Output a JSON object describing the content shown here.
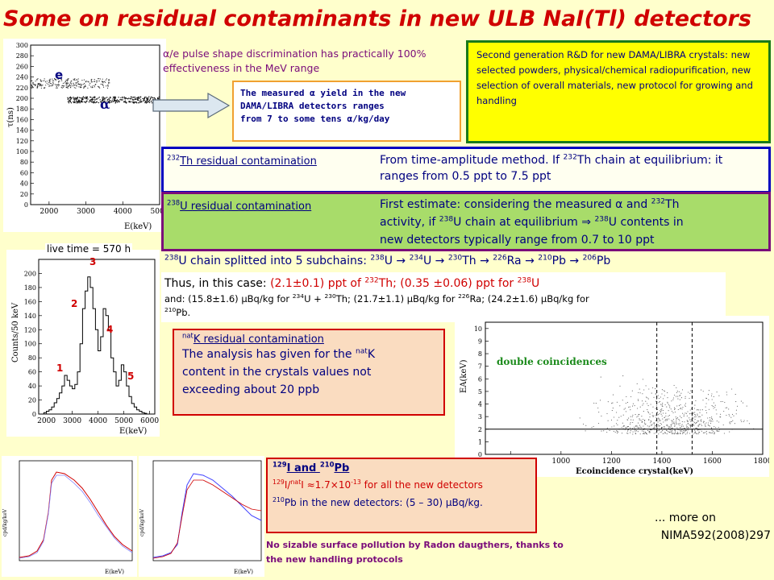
{
  "title": "Some on residual contaminants in new ULB NaI(Tl) detectors",
  "psd": {
    "text": "α/e pulse shape discrimination has practically 100% effectiveness in the MeV range",
    "label_e": "e",
    "label_alpha": "α",
    "ylabel": "τ(ns)",
    "xlabel": "E(keV)",
    "yticks": [
      "0",
      "20",
      "40",
      "60",
      "80",
      "100",
      "120",
      "140",
      "160",
      "180",
      "200",
      "220",
      "240",
      "260",
      "280",
      "300"
    ],
    "xticks": [
      "2000",
      "3000",
      "4000",
      "5000"
    ]
  },
  "alpha_yield": {
    "line1": "The measured α yield in the new",
    "line2": "DAMA/LIBRA detectors ranges",
    "line3": "from 7 to some tens α/kg/day"
  },
  "second_gen": {
    "text": "Second generation R&D for new DAMA/LIBRA crystals: new selected powders, physical/chemical radiopurification, new selection of overall materials, new protocol for growing and handling"
  },
  "th": {
    "label_sup": "232",
    "label": "Th residual contamination",
    "text_a": "From time-amplitude method. If ",
    "text_sup": "232",
    "text_b": "Th chain at equilibrium: it ranges from 0.5 ppt to 7.5 ppt"
  },
  "u": {
    "label_sup": "238",
    "label": "U residual contamination",
    "l1a": "First estimate: considering the measured α and ",
    "l1sup": "232",
    "l1b": "Th",
    "l2a": "activity, if ",
    "l2sup1": "238",
    "l2b": "U chain at equilibrium ⇒ ",
    "l2sup2": "238",
    "l2c": "U contents in",
    "l3": "new detectors typically range from 0.7 to 10 ppt"
  },
  "spectrum": {
    "livetime": "live time = 570 h",
    "ylabel": "Counts/50 keV",
    "xlabel": "E(keV)",
    "yticks": [
      "0",
      "20",
      "40",
      "60",
      "80",
      "100",
      "120",
      "140",
      "160",
      "180",
      "200"
    ],
    "xticks": [
      "2000",
      "3000",
      "4000",
      "5000",
      "6000"
    ],
    "peak1": "1",
    "peak2": "2",
    "peak3": "3",
    "peak4": "4",
    "peak5": "5"
  },
  "subchains": {
    "s1": "238",
    "t1": "U chain splitted into 5 subchains: ",
    "s2": "238",
    "t2": "U → ",
    "s3": "234",
    "t3": "U → ",
    "s4": "230",
    "t4": "Th → ",
    "s5": "226",
    "t5": "Ra → ",
    "s6": "210",
    "t6": "Pb → ",
    "s7": "206",
    "t7": "Pb"
  },
  "thus": {
    "l1a": "Thus, in this case: ",
    "l1b": "(2.1±0.1) ppt of ",
    "l1sup": "232",
    "l1c": "Th; (0.35 ±0.06) ppt for ",
    "l1sup2": "238",
    "l1d": "U",
    "l2a": "and: (15.8±1.6) μBq/kg for ",
    "l2s1": "234",
    "l2b": "U + ",
    "l2s2": "230",
    "l2c": "Th; (21.7±1.1) μBq/kg for ",
    "l2s3": "226",
    "l2d": "Ra; (24.2±1.6) μBq/kg for",
    "l3s": "210",
    "l3": "Pb."
  },
  "k": {
    "label_sup": "nat",
    "label": "K residual contamination",
    "l1a": "The analysis has given for the ",
    "l1sup": "nat",
    "l1b": "K",
    "l2": "content in the crystals values not",
    "l3": "exceeding about 20 ppb"
  },
  "coinc": {
    "label": "double coincidences",
    "ylabel": "EA(keV)",
    "xlabel": "Ecoincidence crystal(keV)",
    "yticks": [
      "0",
      "1",
      "2",
      "3",
      "4",
      "5",
      "6",
      "7",
      "8",
      "9",
      "10"
    ],
    "xticks": [
      "800",
      "1000",
      "1200",
      "1400",
      "1600",
      "1800"
    ]
  },
  "iodine": {
    "title_s1": "129",
    "title_a": "I and ",
    "title_s2": "210",
    "title_b": "Pb",
    "l1s1": "129",
    "l1a": "I/",
    "l1s2": "nat",
    "l1b": "I ≈1.7×10",
    "l1s3": "-13",
    "l1c": " for all the new detectors",
    "l2s": "210",
    "l2": "Pb in the new detectors: (5 – 30) μBq/kg."
  },
  "radon": {
    "text": "No sizable surface pollution by Radon daugthers, thanks to the new handling protocols"
  },
  "more": {
    "line1": "... more on",
    "line2": "NIMA592(2008)297"
  },
  "small_plots": {
    "ylabel": "cpd/kg/keV",
    "xlabel": "E(keV)"
  }
}
